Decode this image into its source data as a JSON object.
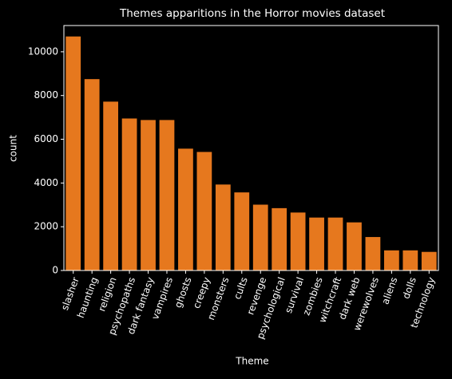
{
  "chart_data": {
    "type": "bar",
    "title": "Themes apparitions in the Horror movies dataset",
    "x_label": "Theme",
    "y_label": "count",
    "categories": [
      "slasher",
      "haunting",
      "religion",
      "psychopaths",
      "dark fantasy",
      "vampires",
      "ghosts",
      "creepy",
      "monsters",
      "cults",
      "revenge",
      "psychological",
      "survival",
      "zombies",
      "witchcraft",
      "dark web",
      "werewolves",
      "aliens",
      "dolls",
      "technology"
    ],
    "values": [
      10700,
      8750,
      7720,
      6950,
      6880,
      6880,
      5570,
      5420,
      3930,
      3570,
      3010,
      2850,
      2650,
      2420,
      2420,
      2200,
      1530,
      920,
      920,
      850
    ],
    "color": "#e6781e",
    "ylim": [
      0,
      11200
    ],
    "yticks": [
      0,
      2000,
      4000,
      6000,
      8000,
      10000
    ],
    "grid": false
  }
}
